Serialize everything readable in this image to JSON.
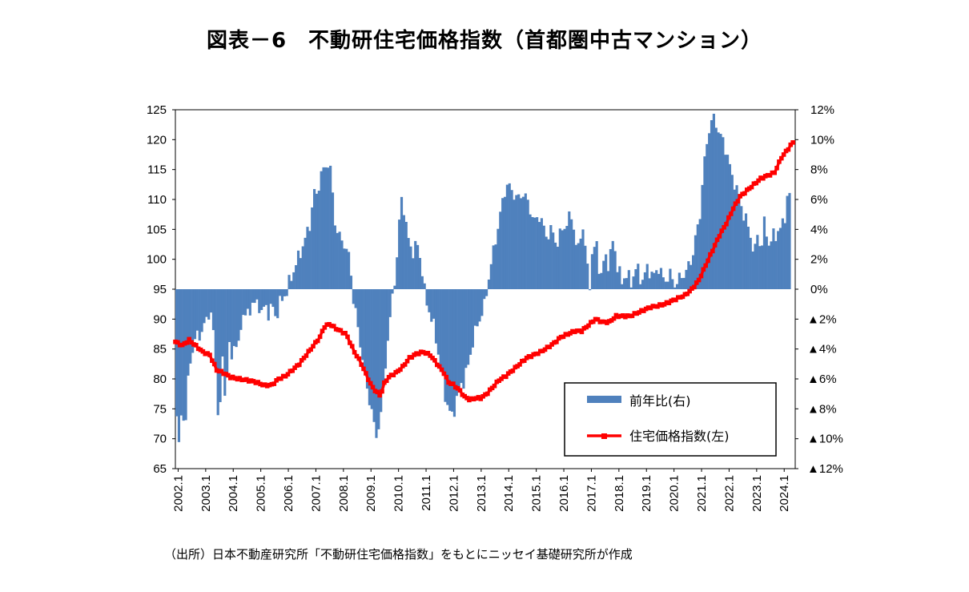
{
  "title": "図表－6　不動研住宅価格指数（首都圏中古マンション）",
  "source": "（出所）日本不動産研究所「不動研住宅価格指数」をもとにニッセイ基礎研究所が作成",
  "chart_data": {
    "type": "bar+line",
    "x_tick_labels": [
      "2002.1",
      "2003.1",
      "2004.1",
      "2005.1",
      "2006.1",
      "2007.1",
      "2008.1",
      "2009.1",
      "2010.1",
      "2011.1",
      "2012.1",
      "2013.1",
      "2014.1",
      "2015.1",
      "2016.1",
      "2017.1",
      "2018.1",
      "2019.1",
      "2020.1",
      "2021.1",
      "2022.1",
      "2023.1",
      "2024.1"
    ],
    "y_left": {
      "ticks": [
        "125",
        "120",
        "115",
        "110",
        "105",
        "100",
        "95",
        "90",
        "85",
        "80",
        "75",
        "70",
        "65"
      ],
      "range": [
        65,
        125
      ]
    },
    "y_right": {
      "ticks": [
        "12%",
        "10%",
        "8%",
        "6%",
        "4%",
        "2%",
        "0%",
        "▲2%",
        "▲4%",
        "▲6%",
        "▲8%",
        "▲10%",
        "▲12%"
      ],
      "range": [
        -12,
        12
      ]
    },
    "legend": {
      "position": "bottom-right",
      "entries": [
        "前年比(右)",
        "住宅価格指数(左)"
      ]
    },
    "colors": {
      "bar": "#4f81bd",
      "line": "#ff0000"
    },
    "series": [
      {
        "name": "前年比(右)",
        "axis": "right",
        "type": "bar",
        "anchors": [
          [
            2002.0,
            -8.5
          ],
          [
            2002.1,
            -11
          ],
          [
            2002.2,
            -7
          ],
          [
            2002.3,
            -10
          ],
          [
            2002.45,
            -5
          ],
          [
            2002.6,
            -4
          ],
          [
            2002.75,
            -3
          ],
          [
            2002.9,
            -3
          ],
          [
            2003.0,
            -2.5
          ],
          [
            2003.15,
            -1.5
          ],
          [
            2003.3,
            -2
          ],
          [
            2003.45,
            -6
          ],
          [
            2003.55,
            -10
          ],
          [
            2003.65,
            -4
          ],
          [
            2003.75,
            -7
          ],
          [
            2003.9,
            -4
          ],
          [
            2004.0,
            -4.5
          ],
          [
            2004.1,
            -3.5
          ],
          [
            2004.25,
            -4
          ],
          [
            2004.35,
            -2
          ],
          [
            2004.45,
            -1.5
          ],
          [
            2004.55,
            -2
          ],
          [
            2004.7,
            -1
          ],
          [
            2005.0,
            -1
          ],
          [
            2005.1,
            -1.8
          ],
          [
            2005.2,
            -1.0
          ],
          [
            2005.35,
            -1.6
          ],
          [
            2005.5,
            -1.2
          ],
          [
            2005.6,
            -1.9
          ],
          [
            2005.75,
            -1.0
          ],
          [
            2005.9,
            -0.4
          ],
          [
            2006.0,
            -0.2
          ],
          [
            2006.1,
            0.5
          ],
          [
            2006.3,
            1.5
          ],
          [
            2006.5,
            2.5
          ],
          [
            2006.7,
            3.5
          ],
          [
            2006.85,
            4.5
          ],
          [
            2007.0,
            6.5
          ],
          [
            2007.1,
            6.2
          ],
          [
            2007.2,
            7.5
          ],
          [
            2007.35,
            8.0
          ],
          [
            2007.5,
            8.5
          ],
          [
            2007.6,
            7.8
          ],
          [
            2007.75,
            4.5
          ],
          [
            2007.9,
            3.5
          ],
          [
            2008.1,
            3.0
          ],
          [
            2008.2,
            2.5
          ],
          [
            2008.3,
            1.8
          ],
          [
            2008.4,
            -0.5
          ],
          [
            2008.5,
            -1.5
          ],
          [
            2008.6,
            -3
          ],
          [
            2008.75,
            -4.5
          ],
          [
            2008.9,
            -6.5
          ],
          [
            2009.0,
            -7.5
          ],
          [
            2009.1,
            -8
          ],
          [
            2009.2,
            -10
          ],
          [
            2009.3,
            -9.5
          ],
          [
            2009.4,
            -8.5
          ],
          [
            2009.5,
            -7
          ],
          [
            2009.6,
            -4.5
          ],
          [
            2009.75,
            -2
          ],
          [
            2009.9,
            0.5
          ],
          [
            2010.0,
            2.0
          ],
          [
            2010.1,
            5.0
          ],
          [
            2010.2,
            6.5
          ],
          [
            2010.3,
            4.5
          ],
          [
            2010.45,
            3.0
          ],
          [
            2010.6,
            2.5
          ],
          [
            2010.75,
            3.0
          ],
          [
            2010.9,
            1.5
          ],
          [
            2011.0,
            -0.2
          ],
          [
            2011.1,
            -1.0
          ],
          [
            2011.25,
            -2
          ],
          [
            2011.4,
            -3
          ],
          [
            2011.55,
            -5
          ],
          [
            2011.7,
            -6.5
          ],
          [
            2011.85,
            -8
          ],
          [
            2012.0,
            -8.5
          ],
          [
            2012.15,
            -7.5
          ],
          [
            2012.3,
            -6.5
          ],
          [
            2012.45,
            -6
          ],
          [
            2012.6,
            -5
          ],
          [
            2012.75,
            -3.5
          ],
          [
            2012.9,
            -2.5
          ],
          [
            2013.0,
            -2
          ],
          [
            2013.1,
            -1.5
          ],
          [
            2013.2,
            -1
          ],
          [
            2013.3,
            0.5
          ],
          [
            2013.45,
            2.0
          ],
          [
            2013.6,
            3.5
          ],
          [
            2013.75,
            5.0
          ],
          [
            2013.9,
            6.5
          ],
          [
            2014.0,
            7.0
          ],
          [
            2014.2,
            6.5
          ],
          [
            2014.4,
            6.0
          ],
          [
            2014.6,
            6.5
          ],
          [
            2014.8,
            5.5
          ],
          [
            2015.0,
            4.5
          ],
          [
            2015.2,
            5.0
          ],
          [
            2015.4,
            3.5
          ],
          [
            2015.6,
            4.0
          ],
          [
            2015.8,
            3.0
          ],
          [
            2016.0,
            4.0
          ],
          [
            2016.2,
            4.5
          ],
          [
            2016.35,
            5.0
          ],
          [
            2016.5,
            3.0
          ],
          [
            2016.6,
            2.5
          ],
          [
            2016.7,
            4.5
          ],
          [
            2016.8,
            3.5
          ],
          [
            2016.9,
            1.5
          ],
          [
            2017.0,
            0.5
          ],
          [
            2017.1,
            2.5
          ],
          [
            2017.25,
            3.0
          ],
          [
            2017.4,
            0.5
          ],
          [
            2017.55,
            2.5
          ],
          [
            2017.7,
            1.5
          ],
          [
            2017.85,
            3.5
          ],
          [
            2018.0,
            1.5
          ],
          [
            2018.15,
            0.5
          ],
          [
            2018.3,
            1.0
          ],
          [
            2018.5,
            0.5
          ],
          [
            2018.7,
            1.5
          ],
          [
            2018.9,
            0.5
          ],
          [
            2019.1,
            1.5
          ],
          [
            2019.3,
            0.8
          ],
          [
            2019.5,
            1.5
          ],
          [
            2019.7,
            0.5
          ],
          [
            2019.9,
            1.0
          ],
          [
            2020.1,
            0.3
          ],
          [
            2020.3,
            0.8
          ],
          [
            2020.5,
            1.2
          ],
          [
            2020.7,
            2.0
          ],
          [
            2020.85,
            3.5
          ],
          [
            2021.0,
            5.0
          ],
          [
            2021.1,
            7.5
          ],
          [
            2021.2,
            9.0
          ],
          [
            2021.3,
            10.5
          ],
          [
            2021.45,
            11.5
          ],
          [
            2021.6,
            11.0
          ],
          [
            2021.8,
            10.0
          ],
          [
            2022.0,
            9.0
          ],
          [
            2022.15,
            7.5
          ],
          [
            2022.3,
            7.0
          ],
          [
            2022.5,
            5.5
          ],
          [
            2022.7,
            4.5
          ],
          [
            2022.9,
            3.0
          ],
          [
            2023.0,
            2.5
          ],
          [
            2023.1,
            4.0
          ],
          [
            2023.2,
            2.5
          ],
          [
            2023.35,
            4.5
          ],
          [
            2023.5,
            3.0
          ],
          [
            2023.65,
            3.5
          ],
          [
            2023.8,
            3.8
          ],
          [
            2023.9,
            4.0
          ],
          [
            2024.05,
            4.5
          ],
          [
            2024.15,
            6.0
          ],
          [
            2024.3,
            6.5
          ]
        ]
      },
      {
        "name": "住宅価格指数(左)",
        "axis": "left",
        "type": "line",
        "anchors": [
          [
            2002.0,
            86.2
          ],
          [
            2002.25,
            85.6
          ],
          [
            2002.5,
            86.5
          ],
          [
            2002.75,
            85.5
          ],
          [
            2003.0,
            84.5
          ],
          [
            2003.25,
            84.0
          ],
          [
            2003.5,
            81.5
          ],
          [
            2003.75,
            81.0
          ],
          [
            2004.0,
            80.3
          ],
          [
            2004.3,
            80.0
          ],
          [
            2004.6,
            79.8
          ],
          [
            2004.9,
            79.5
          ],
          [
            2005.25,
            78.9
          ],
          [
            2005.5,
            79.0
          ],
          [
            2005.75,
            80.0
          ],
          [
            2006.0,
            80.5
          ],
          [
            2006.25,
            81.5
          ],
          [
            2006.5,
            82.5
          ],
          [
            2006.75,
            84.0
          ],
          [
            2007.0,
            85.5
          ],
          [
            2007.25,
            87.0
          ],
          [
            2007.4,
            88.7
          ],
          [
            2007.6,
            89.2
          ],
          [
            2007.8,
            88.5
          ],
          [
            2008.0,
            88.0
          ],
          [
            2008.2,
            87.5
          ],
          [
            2008.35,
            86.0
          ],
          [
            2008.5,
            84.5
          ],
          [
            2008.7,
            83.0
          ],
          [
            2008.9,
            81.0
          ],
          [
            2009.1,
            79.0
          ],
          [
            2009.3,
            77.8
          ],
          [
            2009.45,
            77.2
          ],
          [
            2009.6,
            79.5
          ],
          [
            2009.8,
            80.5
          ],
          [
            2010.0,
            81.0
          ],
          [
            2010.25,
            82.0
          ],
          [
            2010.5,
            83.5
          ],
          [
            2010.75,
            84.2
          ],
          [
            2011.0,
            84.5
          ],
          [
            2011.25,
            84.0
          ],
          [
            2011.5,
            82.5
          ],
          [
            2011.75,
            81.0
          ],
          [
            2011.9,
            79.5
          ],
          [
            2012.1,
            79.0
          ],
          [
            2012.3,
            78.2
          ],
          [
            2012.5,
            77.0
          ],
          [
            2012.7,
            76.5
          ],
          [
            2012.9,
            76.8
          ],
          [
            2013.1,
            76.8
          ],
          [
            2013.3,
            77.5
          ],
          [
            2013.5,
            78.5
          ],
          [
            2013.75,
            79.8
          ],
          [
            2014.0,
            80.5
          ],
          [
            2014.25,
            81.5
          ],
          [
            2014.5,
            82.5
          ],
          [
            2014.75,
            83.5
          ],
          [
            2015.0,
            84.0
          ],
          [
            2015.25,
            84.5
          ],
          [
            2015.5,
            85.2
          ],
          [
            2015.75,
            86.0
          ],
          [
            2016.0,
            87.0
          ],
          [
            2016.25,
            87.5
          ],
          [
            2016.5,
            88.0
          ],
          [
            2016.75,
            88.0
          ],
          [
            2017.0,
            89.0
          ],
          [
            2017.25,
            90.0
          ],
          [
            2017.5,
            89.5
          ],
          [
            2017.75,
            89.5
          ],
          [
            2018.0,
            90.5
          ],
          [
            2018.25,
            90.5
          ],
          [
            2018.5,
            90.5
          ],
          [
            2018.75,
            91.0
          ],
          [
            2019.0,
            91.5
          ],
          [
            2019.25,
            92.0
          ],
          [
            2019.5,
            92.2
          ],
          [
            2019.75,
            92.5
          ],
          [
            2020.0,
            93.0
          ],
          [
            2020.25,
            93.5
          ],
          [
            2020.5,
            94.0
          ],
          [
            2020.75,
            95.0
          ],
          [
            2021.0,
            96.5
          ],
          [
            2021.25,
            99.0
          ],
          [
            2021.5,
            101.5
          ],
          [
            2021.75,
            104.0
          ],
          [
            2022.0,
            106.0
          ],
          [
            2022.25,
            108.5
          ],
          [
            2022.5,
            110.5
          ],
          [
            2022.75,
            111.5
          ],
          [
            2023.0,
            112.5
          ],
          [
            2023.25,
            113.5
          ],
          [
            2023.5,
            114.0
          ],
          [
            2023.75,
            114.5
          ],
          [
            2024.0,
            117.0
          ],
          [
            2024.25,
            118.5
          ],
          [
            2024.4,
            119.5
          ]
        ]
      }
    ]
  }
}
